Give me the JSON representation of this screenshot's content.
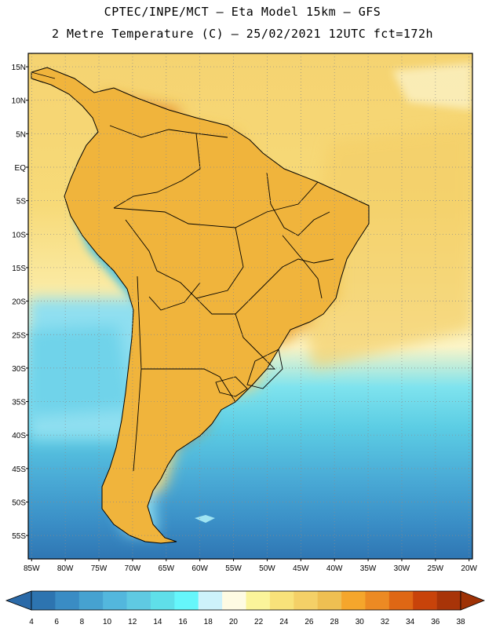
{
  "header": {
    "title_line1": "CPTEC/INPE/MCT –  Eta Model 15km – GFS",
    "title_line2": "2 Metre Temperature (C) – 25/02/2021 12UTC fct=172h"
  },
  "map": {
    "lat_labels": [
      "15N",
      "10N",
      "5N",
      "EQ",
      "5S",
      "10S",
      "15S",
      "20S",
      "25S",
      "30S",
      "35S",
      "40S",
      "45S",
      "50S",
      "55S"
    ],
    "lat_values": [
      15,
      10,
      5,
      0,
      -5,
      -10,
      -15,
      -20,
      -25,
      -30,
      -35,
      -40,
      -45,
      -50,
      -55
    ],
    "lon_labels": [
      "85W",
      "80W",
      "75W",
      "70W",
      "65W",
      "60W",
      "55W",
      "50W",
      "45W",
      "40W",
      "35W",
      "30W",
      "25W",
      "20W"
    ],
    "lon_values": [
      -85,
      -80,
      -75,
      -70,
      -65,
      -60,
      -55,
      -50,
      -45,
      -40,
      -35,
      -30,
      -25,
      -20
    ],
    "extent": {
      "lon_min": -85.5,
      "lon_max": -19.5,
      "lat_min": -58.5,
      "lat_max": 17
    }
  },
  "colorbar": {
    "labels": [
      "4",
      "6",
      "8",
      "10",
      "12",
      "14",
      "16",
      "18",
      "20",
      "22",
      "24",
      "26",
      "28",
      "30",
      "32",
      "34",
      "36",
      "38"
    ],
    "colors": [
      "#2d74b0",
      "#3a8cc4",
      "#46a2d0",
      "#53b7dd",
      "#5fcae2",
      "#5fdfe9",
      "#65f6fb",
      "#cdf2fb",
      "#fefbe3",
      "#fbf49a",
      "#f8e27a",
      "#f4d067",
      "#eebf52",
      "#f5a62c",
      "#ec8a23",
      "#df6714",
      "#c8430a",
      "#a83408"
    ],
    "under_color": "#2b6aa8",
    "over_color": "#9e3206"
  }
}
